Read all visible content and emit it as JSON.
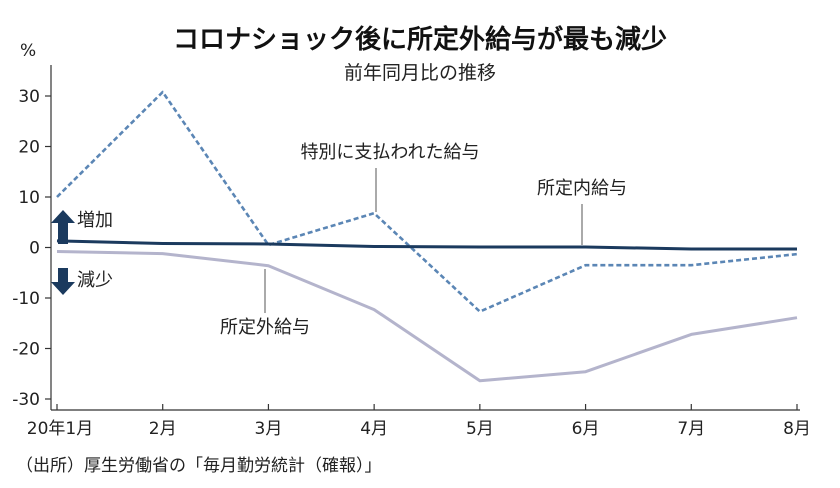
{
  "chart_data": {
    "type": "line",
    "title": "コロナショック後に所定外給与が最も減少",
    "subtitle": "前年同月比の推移",
    "y_unit": "%",
    "ylim": [
      -32,
      34
    ],
    "yticks": [
      30,
      20,
      10,
      0,
      -10,
      -20,
      -30
    ],
    "categories": [
      "20年1月",
      "2月",
      "3月",
      "4月",
      "5月",
      "6月",
      "7月",
      "8月"
    ],
    "series": [
      {
        "name": "特別に支払われた給与",
        "style": "dashed",
        "color": "#5b86b5",
        "values": [
          10.0,
          30.8,
          0.5,
          6.8,
          -12.7,
          -3.5,
          -3.5,
          -1.3
        ]
      },
      {
        "name": "所定内給与",
        "style": "solid",
        "color": "#1b3a5e",
        "values": [
          1.3,
          0.8,
          0.7,
          0.2,
          0.1,
          0.1,
          -0.3,
          -0.3
        ]
      },
      {
        "name": "所定外給与",
        "style": "solid",
        "color": "#b4b4cc",
        "values": [
          -0.8,
          -1.2,
          -3.6,
          -12.3,
          -26.4,
          -24.6,
          -17.2,
          -13.9
        ]
      }
    ],
    "annotations": {
      "increase": "増加",
      "decrease": "減少"
    },
    "grid": false,
    "source": "（出所）厚生労働省の「毎月勤労統計（確報）」"
  },
  "colors": {
    "arrow": "#1b3a5e",
    "axis": "#333333"
  }
}
